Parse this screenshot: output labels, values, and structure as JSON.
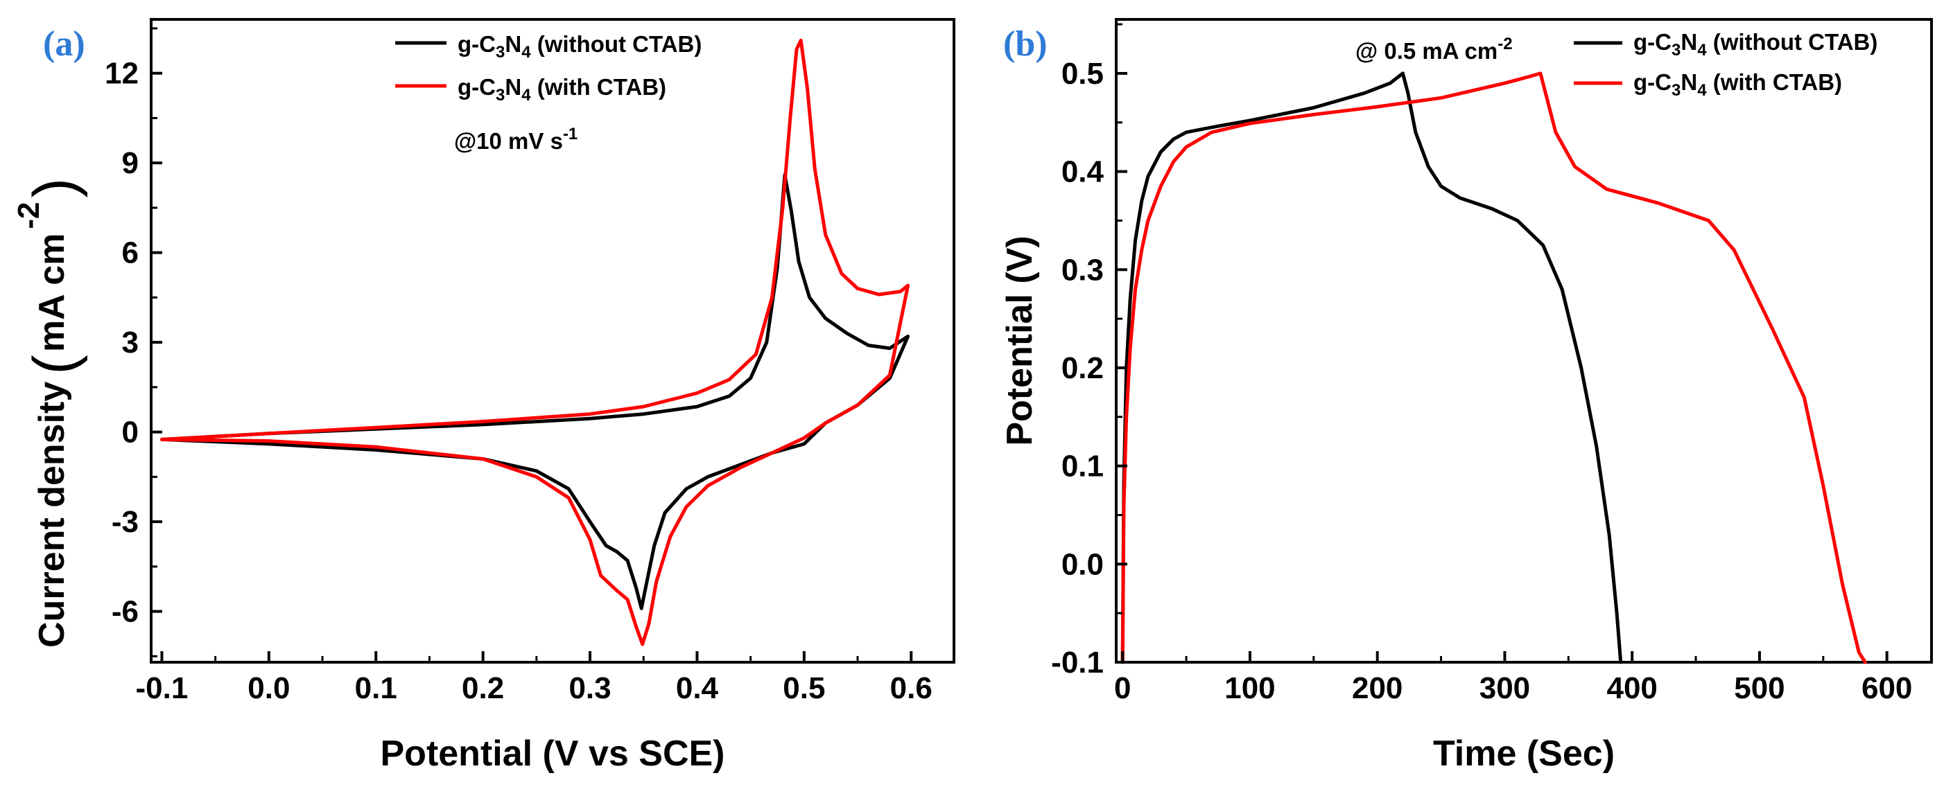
{
  "chart_data": [
    {
      "type": "line",
      "panel_label": "(a)",
      "xlabel": "Potential (V vs SCE)",
      "ylabel_main": "Current density",
      "ylabel_unit": "mA cm",
      "ylabel_exp": "-2",
      "xlim": [
        -0.11,
        0.64
      ],
      "ylim": [
        -7.7,
        13.8
      ],
      "xticks": [
        -0.1,
        0.0,
        0.1,
        0.2,
        0.3,
        0.4,
        0.5,
        0.6
      ],
      "xtick_labels": [
        "-0.1",
        "0.0",
        "0.1",
        "0.2",
        "0.3",
        "0.4",
        "0.5",
        "0.6"
      ],
      "yticks": [
        -6,
        -3,
        0,
        3,
        6,
        9,
        12
      ],
      "ytick_labels": [
        "-6",
        "-3",
        "0",
        "3",
        "6",
        "9",
        "12"
      ],
      "annotation": {
        "prefix": "@10 mV s",
        "sup": "-1"
      },
      "series": [
        {
          "name": "g-C3N4 (without CTAB)",
          "legend_prefix": "g-C",
          "legend_sub1": "3",
          "legend_mid": "N",
          "legend_sub2": "4",
          "legend_suffix": " (without CTAB)",
          "color": "#000000",
          "forward": {
            "x": [
              -0.1,
              0.0,
              0.1,
              0.2,
              0.3,
              0.35,
              0.4,
              0.43,
              0.45,
              0.465,
              0.475,
              0.482,
              0.488,
              0.495,
              0.505,
              0.52,
              0.54,
              0.56,
              0.58,
              0.597
            ],
            "y": [
              -0.25,
              -0.05,
              0.1,
              0.25,
              0.45,
              0.6,
              0.85,
              1.2,
              1.8,
              3.0,
              5.5,
              8.6,
              7.4,
              5.7,
              4.5,
              3.8,
              3.3,
              2.9,
              2.8,
              3.2
            ]
          },
          "reverse": {
            "x": [
              0.597,
              0.58,
              0.55,
              0.52,
              0.5,
              0.47,
              0.44,
              0.41,
              0.39,
              0.37,
              0.36,
              0.352,
              0.348,
              0.343,
              0.335,
              0.325,
              0.315,
              0.3,
              0.28,
              0.25,
              0.2,
              0.1,
              0.0,
              -0.1
            ],
            "y": [
              3.2,
              1.8,
              0.9,
              0.3,
              -0.4,
              -0.7,
              -1.1,
              -1.5,
              -1.9,
              -2.7,
              -3.8,
              -5.2,
              -5.9,
              -5.2,
              -4.3,
              -4.0,
              -3.8,
              -3.0,
              -1.9,
              -1.3,
              -0.9,
              -0.6,
              -0.4,
              -0.25
            ]
          }
        },
        {
          "name": "g-C3N4 (with CTAB)",
          "legend_prefix": "g-C",
          "legend_sub1": "3",
          "legend_mid": "N",
          "legend_sub2": "4",
          "legend_suffix": " (with CTAB)",
          "color": "#ff0000",
          "forward": {
            "x": [
              -0.1,
              0.0,
              0.1,
              0.2,
              0.3,
              0.35,
              0.4,
              0.43,
              0.455,
              0.47,
              0.48,
              0.487,
              0.493,
              0.497,
              0.503,
              0.51,
              0.52,
              0.535,
              0.55,
              0.57,
              0.59,
              0.597
            ],
            "y": [
              -0.25,
              -0.05,
              0.15,
              0.35,
              0.6,
              0.85,
              1.3,
              1.75,
              2.6,
              4.5,
              7.5,
              10.5,
              12.8,
              13.1,
              11.5,
              8.8,
              6.6,
              5.3,
              4.8,
              4.6,
              4.7,
              4.9
            ]
          },
          "reverse": {
            "x": [
              0.597,
              0.58,
              0.55,
              0.52,
              0.5,
              0.47,
              0.44,
              0.41,
              0.39,
              0.375,
              0.362,
              0.355,
              0.349,
              0.343,
              0.335,
              0.325,
              0.31,
              0.3,
              0.28,
              0.25,
              0.2,
              0.1,
              0.0,
              -0.1
            ],
            "y": [
              4.9,
              1.9,
              0.9,
              0.3,
              -0.2,
              -0.7,
              -1.2,
              -1.8,
              -2.5,
              -3.5,
              -5.0,
              -6.4,
              -7.1,
              -6.5,
              -5.6,
              -5.3,
              -4.8,
              -3.6,
              -2.2,
              -1.5,
              -0.9,
              -0.5,
              -0.3,
              -0.25
            ]
          }
        }
      ]
    },
    {
      "type": "line",
      "panel_label": "(b)",
      "xlabel": "Time (Sec)",
      "ylabel": "Potential (V)",
      "xlim": [
        -5,
        635
      ],
      "ylim": [
        -0.1,
        0.555
      ],
      "xticks": [
        0,
        100,
        200,
        300,
        400,
        500,
        600
      ],
      "xtick_labels": [
        "0",
        "100",
        "200",
        "300",
        "400",
        "500",
        "600"
      ],
      "yticks": [
        -0.1,
        0.0,
        0.1,
        0.2,
        0.3,
        0.4,
        0.5
      ],
      "ytick_labels": [
        "-0.1",
        "0.0",
        "0.1",
        "0.2",
        "0.3",
        "0.4",
        "0.5"
      ],
      "annotation": {
        "prefix": "@ 0.5 mA cm",
        "sup": "-2"
      },
      "series": [
        {
          "name": "g-C3N4 (without CTAB)",
          "legend_prefix": "g-C",
          "legend_sub1": "3",
          "legend_mid": "N",
          "legend_sub2": "4",
          "legend_suffix": " (without CTAB)",
          "color": "#000000",
          "x": [
            0,
            1,
            3,
            6,
            10,
            15,
            20,
            30,
            40,
            50,
            70,
            100,
            150,
            190,
            210,
            220,
            224,
            230,
            240,
            250,
            265,
            290,
            310,
            330,
            345,
            360,
            372,
            382,
            388,
            391
          ],
          "y": [
            -0.1,
            0.08,
            0.2,
            0.27,
            0.33,
            0.37,
            0.395,
            0.42,
            0.433,
            0.44,
            0.445,
            0.452,
            0.465,
            0.48,
            0.49,
            0.5,
            0.48,
            0.44,
            0.405,
            0.385,
            0.373,
            0.362,
            0.35,
            0.325,
            0.28,
            0.2,
            0.12,
            0.03,
            -0.05,
            -0.1
          ]
        },
        {
          "name": "g-C3N4 (with CTAB)",
          "legend_prefix": "g-C",
          "legend_sub1": "3",
          "legend_mid": "N",
          "legend_sub2": "4",
          "legend_suffix": " (with CTAB)",
          "color": "#ff0000",
          "x": [
            0,
            1,
            3,
            6,
            10,
            15,
            20,
            30,
            40,
            50,
            70,
            100,
            150,
            200,
            250,
            300,
            320,
            328,
            333,
            340,
            355,
            380,
            420,
            460,
            480,
            510,
            535,
            550,
            565,
            578,
            583
          ],
          "y": [
            -0.1,
            0.06,
            0.15,
            0.22,
            0.28,
            0.32,
            0.35,
            0.385,
            0.41,
            0.425,
            0.44,
            0.449,
            0.458,
            0.466,
            0.475,
            0.49,
            0.497,
            0.5,
            0.475,
            0.44,
            0.405,
            0.382,
            0.368,
            0.35,
            0.32,
            0.24,
            0.17,
            0.08,
            -0.02,
            -0.09,
            -0.1
          ]
        }
      ]
    }
  ]
}
